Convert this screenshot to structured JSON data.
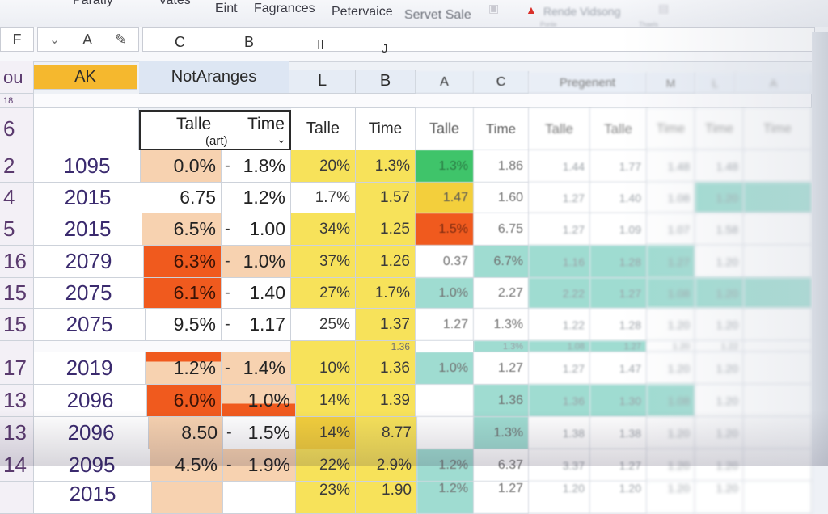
{
  "ribbon": {
    "tabs": [
      "Paratiy",
      "Vates",
      "Eint",
      "Fagrances",
      "Petervaice",
      "Servet Sale"
    ],
    "right_label": "Rende Vidsong",
    "right_sub_a": "Ponle",
    "right_sub_b": "Thaels"
  },
  "formula_bar": {
    "name_box": "F",
    "chevron": "⌄",
    "a_label": "A",
    "col_letters": [
      "C",
      "B",
      "II",
      "J"
    ]
  },
  "header_row1": {
    "rownum": "ou",
    "ak": "AK",
    "notaranges": "NotAranges",
    "l": "L",
    "b": "B",
    "a": "A",
    "c": "C",
    "pregenent": "Pregenent",
    "m": "M",
    "l2": "L",
    "a2": "A"
  },
  "header_row2": {
    "rownum": "18"
  },
  "header_row3": {
    "rownum": "6",
    "talle_a": "Talle",
    "art": "(art)",
    "time_a": "Time",
    "talle_b": "Talle",
    "time_b": "Time",
    "talle_c": "Talle",
    "time_c": "Time",
    "talle_d": "Talle",
    "talle_e": "Talle",
    "time_d": "Time",
    "time_e": "Time",
    "time_f": "Time",
    "sort_arrow": "⌄"
  },
  "rows": [
    {
      "num": "2",
      "year": "1095",
      "v1": "0.0%",
      "v2": "1.8%",
      "v3": "20%",
      "v4": "1.3%",
      "v5": "1.3%",
      "v6": "1.86",
      "v7": "1.44",
      "v8": "1.77",
      "v9": "1.48",
      "v10": "1.48"
    },
    {
      "num": "4",
      "year": "2015",
      "v1": "6.75",
      "v2": "1.2%",
      "v3": "1.7%",
      "v4": "1.57",
      "v5": "1.47",
      "v6": "1.60",
      "v7": "1.27",
      "v8": "1.40",
      "v9": "1.08",
      "v10": "1.20"
    },
    {
      "num": "5",
      "year": "2015",
      "v1": "6.5%",
      "v2": "1.00",
      "v3": "34%",
      "v4": "1.25",
      "v5": "1.5%",
      "v6": "6.75",
      "v7": "1.27",
      "v8": "1.09",
      "v9": "1.07",
      "v10": "1.58"
    },
    {
      "num": "16",
      "year": "2079",
      "v1": "6.3%",
      "v2": "1.0%",
      "v3": "37%",
      "v4": "1.26",
      "v5": "0.37",
      "v6": "6.7%",
      "v7": "1.16",
      "v8": "1.28",
      "v9": "1.27",
      "v10": "1.20"
    },
    {
      "num": "15",
      "year": "2075",
      "v1": "6.1%",
      "v2": "1.40",
      "v3": "27%",
      "v4": "1.7%",
      "v5": "1.0%",
      "v6": "2.27",
      "v7": "2.22",
      "v8": "1.27",
      "v9": "1.08",
      "v10": "1.20"
    },
    {
      "num": "15",
      "year": "2075",
      "v1": "9.5%",
      "v2": "1.17",
      "v3": "25%",
      "v4": "1.37",
      "v5": "1.27",
      "v6": "1.3%",
      "v7": "1.22",
      "v8": "1.28",
      "v9": "1.20",
      "v10": "1.20"
    },
    {
      "num": "",
      "year": "",
      "v1": "",
      "v2": "",
      "v3": "",
      "v4": "1.36",
      "v5": "",
      "v6": "1.3%",
      "v7": "1.08",
      "v8": "1.27",
      "v9": "1.20",
      "v10": "1.22"
    },
    {
      "num": "17",
      "year": "2019",
      "v1": "1.2%",
      "v2": "1.4%",
      "v3": "10%",
      "v4": "1.36",
      "v5": "1.0%",
      "v6": "1.27",
      "v7": "1.27",
      "v8": "1.47",
      "v9": "1.20",
      "v10": "1.20"
    },
    {
      "num": "13",
      "year": "2096",
      "v1": "6.0%",
      "v2": "1.0%",
      "v3": "14%",
      "v4": "1.39",
      "v5": "",
      "v6": "1.36",
      "v7": "1.36",
      "v8": "1.30",
      "v9": "1.08",
      "v10": "1.20"
    },
    {
      "num": "13",
      "year": "2096",
      "v1": "8.50",
      "v2": "1.5%",
      "v3": "14%",
      "v4": "8.77",
      "v5": "",
      "v6": "1.3%",
      "v7": "1.38",
      "v8": "1.38",
      "v9": "1.20",
      "v10": "1.20"
    },
    {
      "num": "14",
      "year": "2095",
      "v1": "4.5%",
      "v2": "1.9%",
      "v3": "22%",
      "v4": "2.9%",
      "v5": "1.2%",
      "v6": "6.37",
      "v7": "3.37",
      "v8": "1.27",
      "v9": "1.20",
      "v10": "1.20"
    },
    {
      "num": "",
      "year": "2015",
      "v1": "",
      "v2": "",
      "v3": "23%",
      "v4": "1.90",
      "v5": "1.2%",
      "v6": "1.27",
      "v7": "1.20",
      "v8": "1.20",
      "v9": "1.20",
      "v10": "1.20"
    }
  ],
  "colors": {
    "peach": "#f7d2b0",
    "orange_red": "#f05a1e",
    "yellow": "#f7e25a",
    "gold": "#f3cf3c",
    "green": "#3fc46a",
    "teal": "#9fdcd1",
    "header_gold": "#f5b82e",
    "header_blue": "#dde6f3"
  }
}
